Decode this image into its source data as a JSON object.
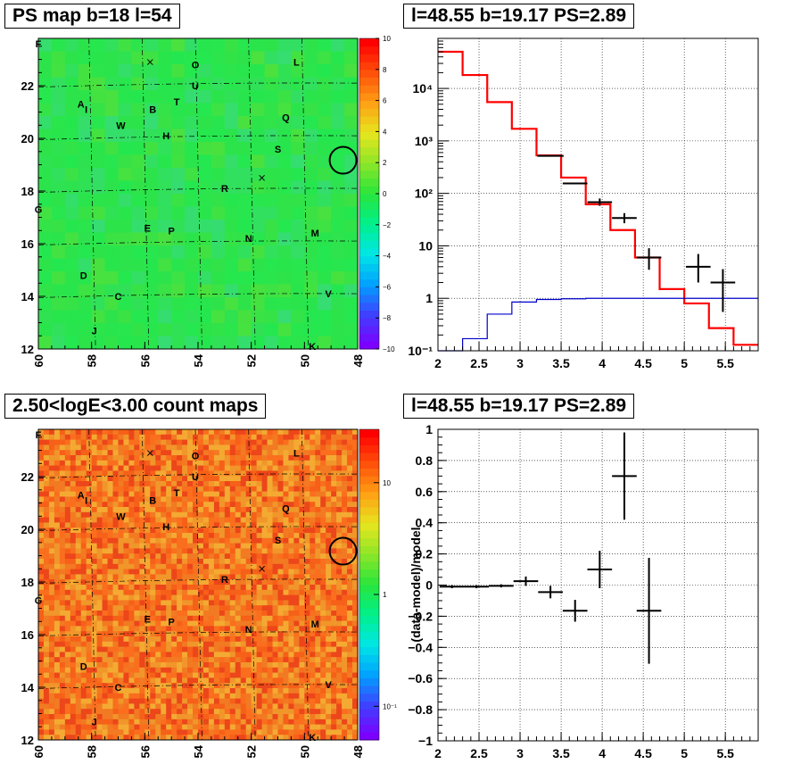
{
  "maps": [
    {
      "title": "PS map b=18 l=54",
      "xticks": [
        "60",
        "58",
        "56",
        "54",
        "52",
        "50",
        "48"
      ],
      "yticks": [
        "12",
        "14",
        "16",
        "18",
        "20",
        "22"
      ],
      "colorbar_ticks": [
        "10",
        "8",
        "6",
        "4",
        "2",
        "0",
        "−2",
        "−4",
        "−6",
        "−8",
        "−10"
      ],
      "colormap": "rainbow-linear",
      "background": "#2de34a"
    },
    {
      "title": "2.50<logE<3.00 count maps",
      "xticks": [
        "60",
        "58",
        "56",
        "54",
        "52",
        "50",
        "48"
      ],
      "yticks": [
        "12",
        "14",
        "16",
        "18",
        "20",
        "22"
      ],
      "colorbar_ticks": [
        "10",
        "1",
        "10⁻¹"
      ],
      "colormap": "rainbow-log",
      "background": "#f27a22"
    }
  ],
  "source_labels": [
    "F",
    "O",
    "L",
    "U",
    "A",
    "I",
    "B",
    "T",
    "Q",
    "W",
    "H",
    "S",
    "R",
    "G",
    "E",
    "P",
    "N",
    "M",
    "D",
    "C",
    "V",
    "J",
    "K"
  ],
  "spectrum": {
    "title": "l=48.55 b=19.17 PS=2.89",
    "xticks": [
      "2",
      "2.5",
      "3",
      "3.5",
      "4",
      "4.5",
      "5",
      "5.5"
    ],
    "yticks": [
      "10⁻¹",
      "1",
      "10",
      "10²",
      "10³",
      "10⁴"
    ]
  },
  "residual": {
    "title": "l=48.55 b=19.17 PS=2.89",
    "ylabel": "(data-model)/model",
    "xticks": [
      "2",
      "2.5",
      "3",
      "3.5",
      "4",
      "4.5",
      "5",
      "5.5"
    ],
    "yticks": [
      "1",
      "0.8",
      "0.6",
      "0.4",
      "0.2",
      "0",
      "−0.2",
      "−0.4",
      "−0.6",
      "−0.8",
      "−1"
    ]
  },
  "chart_data": [
    {
      "type": "heatmap",
      "title": "PS map b=18 l=54",
      "xlim": [
        60,
        48
      ],
      "ylim": [
        12,
        23.8
      ],
      "zlim": [
        -10,
        10
      ],
      "circle": {
        "l": 48.55,
        "b": 19.17
      },
      "crosses": [
        {
          "l": 55.8,
          "b": 22.9
        },
        {
          "l": 51.6,
          "b": 18.5
        }
      ],
      "sources": [
        {
          "label": "F",
          "l": 60,
          "b": 23.6
        },
        {
          "label": "O",
          "l": 54.1,
          "b": 22.8
        },
        {
          "label": "L",
          "l": 50.3,
          "b": 22.9
        },
        {
          "label": "U",
          "l": 54.1,
          "b": 22.0
        },
        {
          "label": "A",
          "l": 58.4,
          "b": 21.3
        },
        {
          "label": "I",
          "l": 58.2,
          "b": 21.1
        },
        {
          "label": "B",
          "l": 55.7,
          "b": 21.1
        },
        {
          "label": "T",
          "l": 54.8,
          "b": 21.4
        },
        {
          "label": "Q",
          "l": 50.7,
          "b": 20.8
        },
        {
          "label": "W",
          "l": 56.9,
          "b": 20.5
        },
        {
          "label": "H",
          "l": 55.2,
          "b": 20.1
        },
        {
          "label": "S",
          "l": 51.0,
          "b": 19.6
        },
        {
          "label": "R",
          "l": 53.0,
          "b": 18.1
        },
        {
          "label": "G",
          "l": 60.0,
          "b": 17.3
        },
        {
          "label": "E",
          "l": 55.9,
          "b": 16.6
        },
        {
          "label": "P",
          "l": 55.0,
          "b": 16.5
        },
        {
          "label": "N",
          "l": 52.1,
          "b": 16.2
        },
        {
          "label": "M",
          "l": 49.6,
          "b": 16.4
        },
        {
          "label": "D",
          "l": 58.3,
          "b": 14.8
        },
        {
          "label": "C",
          "l": 57.0,
          "b": 14.0
        },
        {
          "label": "V",
          "l": 49.1,
          "b": 14.1
        },
        {
          "label": "J",
          "l": 57.9,
          "b": 12.7
        },
        {
          "label": "K",
          "l": 49.7,
          "b": 12.1
        }
      ]
    },
    {
      "type": "heatmap",
      "title": "2.50<logE<3.00 count maps",
      "xlim": [
        60,
        48
      ],
      "ylim": [
        12,
        23.8
      ],
      "zscale": "log",
      "zlim": [
        0.05,
        30
      ],
      "circle": {
        "l": 48.55,
        "b": 19.17
      },
      "crosses": [
        {
          "l": 55.8,
          "b": 22.9
        },
        {
          "l": 51.6,
          "b": 18.5
        }
      ]
    },
    {
      "type": "line",
      "title": "l=48.55 b=19.17 PS=2.89",
      "yscale": "log",
      "xlim": [
        2,
        5.9
      ],
      "ylim": [
        0.1,
        90000
      ],
      "grid": true,
      "series": [
        {
          "kind": "step",
          "color": "#ff0000",
          "edges": [
            2,
            2.3,
            2.6,
            2.9,
            3.2,
            3.5,
            3.8,
            4.1,
            4.4,
            4.7,
            5.0,
            5.3,
            5.6,
            5.9
          ],
          "values": [
            50000,
            18000,
            5500,
            1700,
            530,
            200,
            62,
            20,
            6,
            1.5,
            0.8,
            0.27,
            0.13
          ]
        },
        {
          "kind": "step",
          "color": "#0000cc",
          "edges": [
            2,
            2.3,
            2.6,
            2.9,
            3.2,
            3.5,
            3.8,
            4.1,
            4.4,
            4.7,
            5.0,
            5.3,
            5.6,
            5.9
          ],
          "values": [
            0.08,
            0.17,
            0.5,
            0.85,
            0.95,
            0.98,
            1.0,
            1.0,
            1.0,
            1.0,
            1.0,
            1.0,
            1.0
          ]
        },
        {
          "kind": "errorbar",
          "color": "#000000",
          "points": [
            {
              "x": 3.37,
              "y": 520,
              "xerr": 0.16
            },
            {
              "x": 3.67,
              "y": 155,
              "xerr": 0.15
            },
            {
              "x": 3.97,
              "y": 68,
              "xerr": 0.15,
              "ylo": 58,
              "yhi": 80
            },
            {
              "x": 4.27,
              "y": 34,
              "xerr": 0.15,
              "ylo": 27,
              "yhi": 42
            },
            {
              "x": 4.57,
              "y": 6,
              "xerr": 0.15,
              "ylo": 3.5,
              "yhi": 9
            },
            {
              "x": 5.17,
              "y": 4,
              "xerr": 0.15,
              "ylo": 2,
              "yhi": 7
            },
            {
              "x": 5.47,
              "y": 2,
              "xerr": 0.15,
              "ylo": 0.55,
              "yhi": 3.6
            }
          ]
        }
      ]
    },
    {
      "type": "scatter",
      "title": "l=48.55 b=19.17 PS=2.89",
      "ylabel": "(data-model)/model",
      "xlim": [
        2,
        5.9
      ],
      "ylim": [
        -1,
        1
      ],
      "grid": true,
      "points": [
        {
          "x": 2.17,
          "y": -0.01,
          "xerr": 0.15,
          "yerr": 0.01
        },
        {
          "x": 2.47,
          "y": -0.01,
          "xerr": 0.15,
          "yerr": 0.01
        },
        {
          "x": 2.77,
          "y": -0.005,
          "xerr": 0.15,
          "yerr": 0.01
        },
        {
          "x": 3.07,
          "y": 0.025,
          "xerr": 0.15,
          "yerr": 0.03
        },
        {
          "x": 3.37,
          "y": -0.045,
          "xerr": 0.15,
          "yerr": 0.04
        },
        {
          "x": 3.67,
          "y": -0.165,
          "xerr": 0.15,
          "yerr": 0.07
        },
        {
          "x": 3.97,
          "y": 0.1,
          "xerr": 0.15,
          "yerr": 0.12
        },
        {
          "x": 4.27,
          "y": 0.7,
          "xerr": 0.15,
          "yerr": 0.28
        },
        {
          "x": 4.57,
          "y": -0.165,
          "xerr": 0.15,
          "yerr": 0.34
        }
      ]
    }
  ]
}
